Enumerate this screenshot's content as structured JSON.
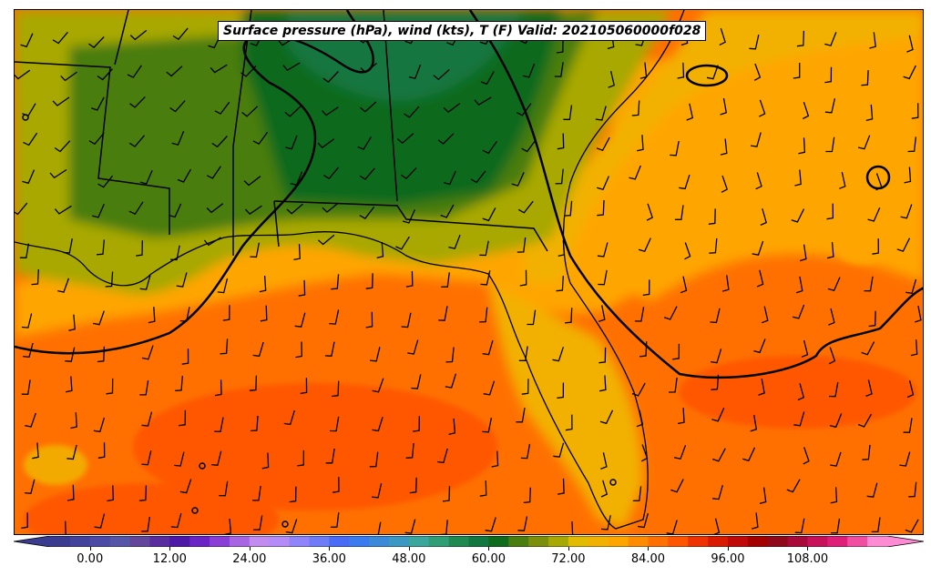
{
  "title": "Surface pressure (hPa), wind (kts), T (F) Valid: 202105060000f028",
  "colorbar": {
    "ticks": [
      "0.00",
      "12.00",
      "24.00",
      "36.00",
      "48.00",
      "60.00",
      "72.00",
      "84.00",
      "96.00",
      "108.00"
    ],
    "tick_values": [
      0,
      12,
      24,
      36,
      48,
      60,
      72,
      84,
      96,
      108
    ],
    "range": [
      -6,
      120
    ],
    "step": 3,
    "colors": [
      "#3b3b8f",
      "#43439b",
      "#4b4ba6",
      "#5656a8",
      "#62469c",
      "#5a2d9f",
      "#4d17a8",
      "#6a23c4",
      "#8a3ed6",
      "#a865e3",
      "#c18bf0",
      "#b48cf7",
      "#8f84fa",
      "#6e7cf7",
      "#4a6bf5",
      "#3a7cf0",
      "#3b8ad9",
      "#3a98c2",
      "#3aa69c",
      "#2f9e74",
      "#1e8a52",
      "#127640",
      "#0e6b1c",
      "#4a7d0f",
      "#7c8f0b",
      "#a8a804",
      "#e2bb00",
      "#f2b100",
      "#ffa500",
      "#ff8c00",
      "#ff7000",
      "#ff5500",
      "#ee3300",
      "#d81b00",
      "#c00a0a",
      "#a50000",
      "#8e0a1a",
      "#a8083a",
      "#c8105a",
      "#e01e7a",
      "#f04ea0",
      "#ff8ad4"
    ]
  },
  "legend_labels": {
    "land": "",
    "water": ""
  }
}
